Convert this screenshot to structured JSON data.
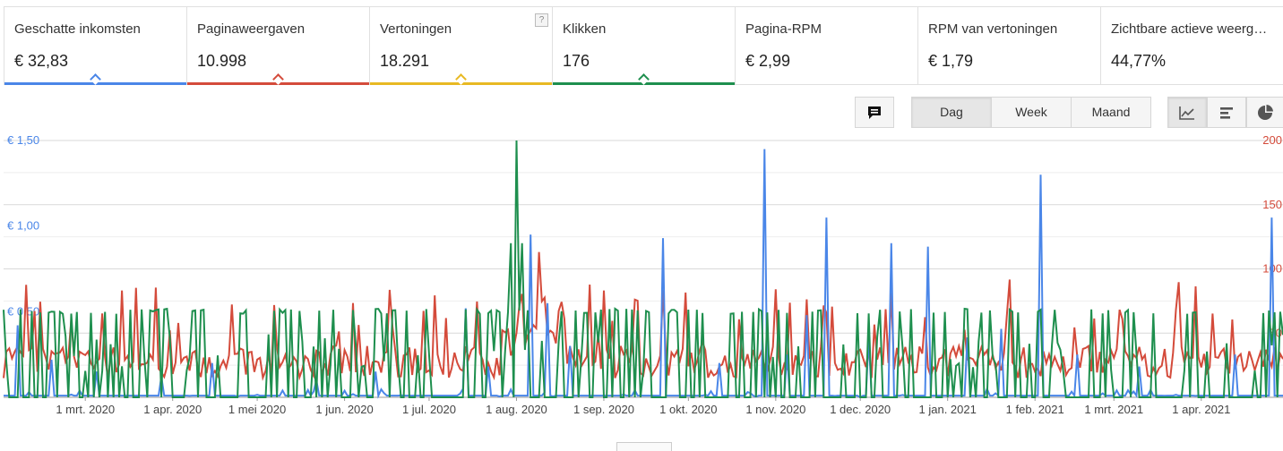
{
  "metrics": [
    {
      "label": "Geschatte inkomsten",
      "value": "€ 32,83",
      "color": "#4a86e8",
      "selected": true
    },
    {
      "label": "Paginaweergaven",
      "value": "10.998",
      "color": "#d44b3b",
      "selected": true
    },
    {
      "label": "Vertoningen",
      "value": "18.291",
      "color": "#e8b923",
      "selected": true
    },
    {
      "label": "Klikken",
      "value": "176",
      "color": "#1e8f4e",
      "selected": true
    },
    {
      "label": "Pagina-RPM",
      "value": "€ 2,99",
      "color": "",
      "selected": false
    },
    {
      "label": "RPM van vertoningen",
      "value": "€ 1,79",
      "color": "",
      "selected": false
    },
    {
      "label": "Zichtbare actieve weerg…",
      "value": "44,77%",
      "color": "",
      "selected": false
    }
  ],
  "help_mark": "?",
  "toolbar": {
    "comment_icon": "speech-bubble-icon",
    "periods": [
      "Dag",
      "Week",
      "Maand"
    ],
    "active_period": "Dag",
    "chart_types": [
      "line-chart-icon",
      "bar-chart-icon",
      "pie-chart-icon"
    ],
    "active_chart_type": "line-chart-icon"
  },
  "chart_data": {
    "type": "line",
    "x_range": [
      "2020-02-01",
      "2021-04-30"
    ],
    "x_tick_labels": [
      "1 mrt. 2020",
      "1 apr. 2020",
      "1 mei 2020",
      "1 jun. 2020",
      "1 jul. 2020",
      "1 aug. 2020",
      "1 sep. 2020",
      "1 okt. 2020",
      "1 nov. 2020",
      "1 dec. 2020",
      "1 jan. 2021",
      "1 feb. 2021",
      "1 mrt. 2021",
      "1 apr. 2021"
    ],
    "x_tick_dates": [
      "2020-03-01",
      "2020-04-01",
      "2020-05-01",
      "2020-06-01",
      "2020-07-01",
      "2020-08-01",
      "2020-09-01",
      "2020-10-01",
      "2020-11-01",
      "2020-12-01",
      "2021-01-01",
      "2021-02-01",
      "2021-03-01",
      "2021-04-01"
    ],
    "y_left": {
      "ticks": [
        0.5,
        1.0,
        1.5
      ],
      "tick_labels": [
        "€ 0,50",
        "€ 1,00",
        "€ 1,50"
      ],
      "range": [
        0,
        1.5
      ],
      "color": "#4a86e8"
    },
    "y_right": {
      "ticks": [
        50,
        100,
        150,
        200
      ],
      "tick_labels": [
        "50",
        "100",
        "150",
        "200"
      ],
      "range": [
        0,
        200
      ],
      "color": "#d44b3b"
    },
    "grid": true,
    "series": [
      {
        "color": "#4a86e8",
        "axis": "left",
        "spikes": [
          [
            "2020-02-06",
            0.42
          ],
          [
            "2020-02-18",
            0.22
          ],
          [
            "2020-03-05",
            0.15
          ],
          [
            "2020-03-28",
            0.12
          ],
          [
            "2020-04-15",
            0.2
          ],
          [
            "2020-05-22",
            0.1
          ],
          [
            "2020-06-12",
            0.15
          ],
          [
            "2020-07-14",
            0.52
          ],
          [
            "2020-07-22",
            0.18
          ],
          [
            "2020-08-06",
            0.95
          ],
          [
            "2020-08-12",
            0.55
          ],
          [
            "2020-08-20",
            0.3
          ],
          [
            "2020-09-22",
            0.93
          ],
          [
            "2020-10-12",
            0.2
          ],
          [
            "2020-10-28",
            1.45
          ],
          [
            "2020-11-05",
            0.25
          ],
          [
            "2020-11-12",
            0.48
          ],
          [
            "2020-11-19",
            1.05
          ],
          [
            "2020-12-04",
            0.35
          ],
          [
            "2020-12-12",
            0.9
          ],
          [
            "2020-12-25",
            0.88
          ],
          [
            "2021-01-08",
            0.35
          ],
          [
            "2021-01-20",
            0.4
          ],
          [
            "2021-02-03",
            1.3
          ],
          [
            "2021-02-16",
            0.25
          ],
          [
            "2021-03-10",
            0.18
          ],
          [
            "2021-04-13",
            0.25
          ],
          [
            "2021-04-26",
            1.05
          ]
        ],
        "base": 0.01
      },
      {
        "color": "#d44b3b",
        "axis": "right",
        "typical": [
          15,
          40
        ]
      },
      {
        "color": "#1e8f4e",
        "axis": "right",
        "peak": [
          "2020-08-01",
          200
        ]
      }
    ]
  }
}
